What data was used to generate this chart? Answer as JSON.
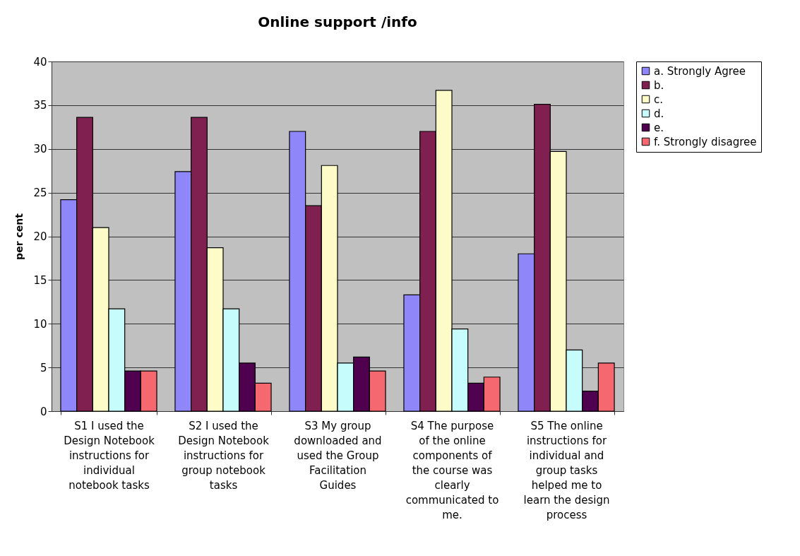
{
  "chart_data": {
    "type": "bar",
    "title": "Online support /info",
    "ylabel": "per cent",
    "categories": [
      "S1 I used the Design Notebook instructions for individual notebook tasks",
      "S2 I used the Design Notebook instructions for group notebook tasks",
      "S3 My group downloaded and used the Group Facilitation Guides",
      "S4 The purpose of the online components of the course was clearly communicated to me.",
      "S5 The online instructions for individual and group tasks helped me to learn the design process"
    ],
    "series": [
      {
        "name": "a. Strongly Agree",
        "color": "#8f86fa",
        "values": [
          24.2,
          27.4,
          32.0,
          13.3,
          18.0
        ]
      },
      {
        "name": "b.",
        "color": "#802050",
        "values": [
          33.6,
          33.6,
          23.5,
          32.0,
          35.1
        ]
      },
      {
        "name": "c.",
        "color": "#fdfcc8",
        "values": [
          21.0,
          18.7,
          28.1,
          36.7,
          29.7
        ]
      },
      {
        "name": "d.",
        "color": "#c6fcfc",
        "values": [
          11.7,
          11.7,
          5.5,
          9.4,
          7.0
        ]
      },
      {
        "name": "e.",
        "color": "#4f004f",
        "values": [
          4.6,
          5.5,
          6.2,
          3.2,
          2.3
        ]
      },
      {
        "name": "f. Strongly disagree",
        "color": "#f5686f",
        "values": [
          4.6,
          3.2,
          4.6,
          3.9,
          5.5
        ]
      }
    ],
    "ylim": [
      0,
      40
    ],
    "yticks": [
      0,
      5,
      10,
      15,
      20,
      25,
      30,
      35,
      40
    ],
    "grid": "y",
    "legend": "right"
  }
}
